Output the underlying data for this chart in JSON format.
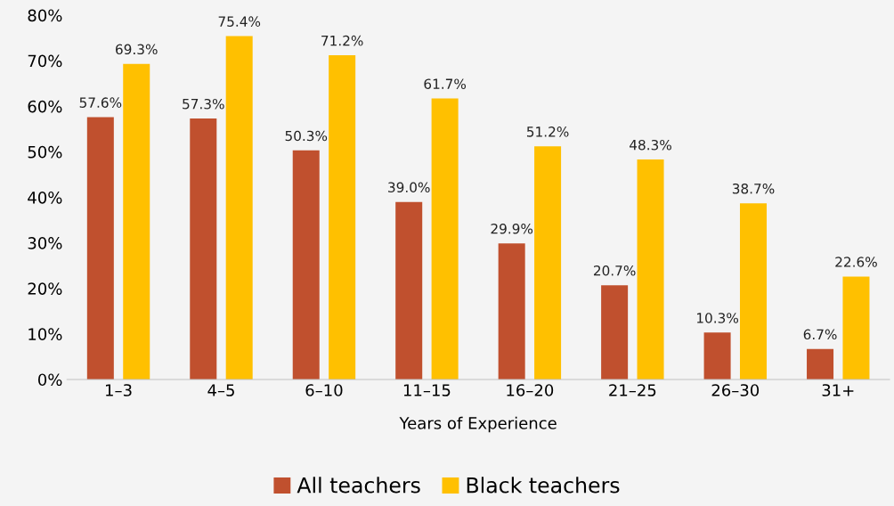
{
  "chart_data": {
    "type": "bar",
    "xlabel": "Years of Experience",
    "categories": [
      "1–3",
      "4–5",
      "6–10",
      "11–15",
      "16–20",
      "21–25",
      "26–30",
      "31+"
    ],
    "series": [
      {
        "name": "All teachers",
        "color": "#c0502e",
        "values": [
          57.6,
          57.3,
          50.3,
          39.0,
          29.9,
          20.7,
          10.3,
          6.7
        ],
        "value_labels": [
          "57.6%",
          "57.3%",
          "50.3%",
          "39.0%",
          "29.9%",
          "20.7%",
          "10.3%",
          "6.7%"
        ]
      },
      {
        "name": "Black teachers",
        "color": "#ffc000",
        "values": [
          69.3,
          75.4,
          71.2,
          61.7,
          51.2,
          48.3,
          38.7,
          22.6
        ],
        "value_labels": [
          "69.3%",
          "75.4%",
          "71.2%",
          "61.7%",
          "51.2%",
          "48.3%",
          "38.7%",
          "22.6%"
        ]
      }
    ],
    "ylim": [
      0,
      80
    ],
    "yticks": [
      {
        "value": 0,
        "label": "0%"
      },
      {
        "value": 10,
        "label": "10%"
      },
      {
        "value": 20,
        "label": "20%"
      },
      {
        "value": 30,
        "label": "30%"
      },
      {
        "value": 40,
        "label": "40%"
      },
      {
        "value": 50,
        "label": "50%"
      },
      {
        "value": 60,
        "label": "60%"
      },
      {
        "value": 70,
        "label": "70%"
      },
      {
        "value": 80,
        "label": "80%"
      }
    ],
    "grid": false,
    "legend": "bottom"
  }
}
